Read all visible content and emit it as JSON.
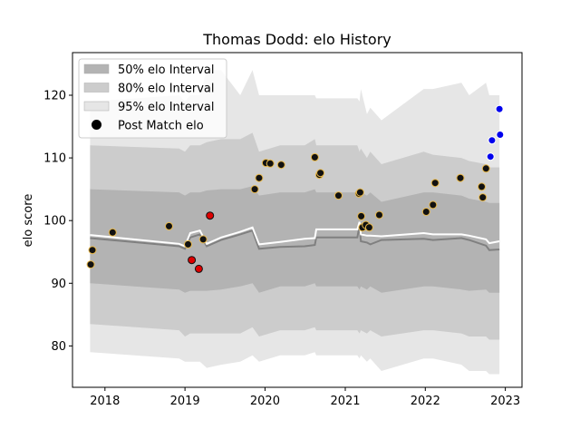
{
  "chart_data": {
    "type": "line",
    "title": "Thomas Dodd: elo History",
    "xlabel": "",
    "ylabel": "elo score",
    "xlim": [
      "2017-08-06",
      "2023-03-18"
    ],
    "ylim": [
      73.4,
      126.8
    ],
    "x_ticks": [
      "2018",
      "2019",
      "2020",
      "2021",
      "2022",
      "2023"
    ],
    "y_ticks": [
      80,
      90,
      100,
      110,
      120
    ],
    "grid": false,
    "legend_position": "upper-left",
    "legend": [
      {
        "label": "50% elo Interval",
        "swatch": "#b3b3b3"
      },
      {
        "label": "80% elo Interval",
        "swatch": "#cccccc"
      },
      {
        "label": "95% elo Interval",
        "swatch": "#e6e6e6"
      },
      {
        "label": "Post Match elo",
        "swatch": "#000000"
      }
    ],
    "colors": {
      "band50": "#b3b3b3",
      "band80": "#cccccc",
      "band95": "#e6e6e6",
      "median_line": "#808080",
      "mean_line": "#ffffff",
      "win_marker": "#111111",
      "win_edge": "#e8b84a",
      "loss_marker": "#dd0000",
      "projection_marker": "#0000ee"
    },
    "bands": {
      "x": [
        "2017-10-25",
        "2018-12-05",
        "2019-01-01",
        "2019-01-25",
        "2019-03-10",
        "2019-04-10",
        "2019-06-15",
        "2019-09-10",
        "2019-11-05",
        "2019-12-05",
        "2020-03-10",
        "2020-06-30",
        "2020-08-15",
        "2020-08-22",
        "2021-02-25",
        "2021-03-07",
        "2021-03-13",
        "2021-04-10",
        "2021-04-25",
        "2021-06-15",
        "2021-12-25",
        "2022-02-05",
        "2022-06-15",
        "2022-07-20",
        "2022-10-05",
        "2022-10-20",
        "2022-12-05"
      ],
      "p95_low": [
        79,
        78,
        77.5,
        77.5,
        77.5,
        76.5,
        77,
        77.5,
        78.5,
        77.5,
        78.5,
        78.5,
        79,
        78.5,
        78.5,
        78,
        78.5,
        77.5,
        78,
        76,
        78,
        78,
        77,
        76,
        76,
        75.5,
        75.5
      ],
      "p80_low": [
        83.5,
        82.5,
        81.5,
        82,
        82,
        82,
        82,
        82,
        83,
        81.5,
        82.5,
        82.5,
        83,
        82.5,
        82.5,
        82,
        82.5,
        82,
        82.5,
        81.5,
        82.5,
        82.5,
        82,
        81.5,
        81.5,
        81,
        81
      ],
      "p50_low": [
        90,
        89,
        88.5,
        88.8,
        88.8,
        88.8,
        89,
        89.5,
        90,
        88.5,
        89.5,
        89.5,
        90,
        89.5,
        89.5,
        89,
        89.5,
        89,
        89.5,
        88.5,
        89.5,
        89.5,
        89,
        88.8,
        89,
        88.5,
        88.5
      ],
      "p50_high": [
        105,
        104.5,
        104,
        104.5,
        104.5,
        104.8,
        105,
        105,
        105.5,
        104,
        104.5,
        104.5,
        105,
        104.5,
        104.5,
        104,
        104.5,
        104,
        104.5,
        103,
        104.5,
        104.5,
        104,
        103.5,
        103,
        102.8,
        102.8
      ],
      "p80_high": [
        112,
        111.5,
        111,
        112,
        112,
        112.5,
        113,
        113,
        114,
        111,
        112,
        112,
        113,
        112,
        112,
        111,
        111.5,
        110,
        111,
        109,
        111,
        110.5,
        110,
        109.5,
        109,
        108.5,
        108.5
      ],
      "p95_high": [
        119,
        120,
        119,
        120,
        120,
        124,
        124,
        120,
        124,
        120,
        120,
        120,
        120,
        119.5,
        119.5,
        119,
        121,
        117,
        118,
        116,
        121,
        121,
        122,
        120,
        122,
        120,
        120
      ],
      "median": [
        97.2,
        95.9,
        95.5,
        97.3,
        97.8,
        95.9,
        96.9,
        97.8,
        98.4,
        95.5,
        95.8,
        95.9,
        96.1,
        97.3,
        97.3,
        99.2,
        96.7,
        96.5,
        96.2,
        96.9,
        97.1,
        96.9,
        97.2,
        96.9,
        96.0,
        95.3,
        95.4
      ],
      "mean": [
        97.7,
        96.3,
        95.9,
        98.0,
        98.4,
        96.3,
        97.3,
        98.2,
        98.9,
        96.2,
        96.6,
        97.1,
        97.2,
        98.6,
        98.6,
        99.8,
        97.8,
        97.6,
        97.6,
        97.5,
        98.0,
        97.8,
        97.8,
        97.6,
        97.0,
        96.4,
        96.7
      ]
    },
    "series": [
      {
        "name": "Post Match elo",
        "kind": "win",
        "x": [
          "2017-10-28",
          "2017-11-05",
          "2018-02-05",
          "2018-10-20",
          "2019-01-15",
          "2019-03-25",
          "2019-11-15",
          "2019-12-05",
          "2020-01-05",
          "2020-01-25",
          "2020-03-15",
          "2020-08-15",
          "2020-09-05",
          "2020-09-10",
          "2020-12-01",
          "2021-03-05",
          "2021-03-10",
          "2021-03-15",
          "2021-03-20",
          "2021-04-05",
          "2021-04-20",
          "2021-06-05",
          "2022-01-05",
          "2022-02-05",
          "2022-02-15",
          "2022-06-10",
          "2022-09-15",
          "2022-09-20",
          "2022-10-05"
        ],
        "y": [
          93,
          95.3,
          98.1,
          99.1,
          96.2,
          97,
          105,
          106.8,
          109.2,
          109.1,
          108.9,
          110.1,
          107.3,
          107.6,
          104,
          104.3,
          104.5,
          100.7,
          98.9,
          99.3,
          98.9,
          100.9,
          101.4,
          102.5,
          106,
          106.8,
          105.4,
          103.7,
          108.3
        ]
      },
      {
        "name": "Post Match elo",
        "kind": "loss",
        "x": [
          "2019-02-01",
          "2019-03-05",
          "2019-04-25"
        ],
        "y": [
          93.7,
          92.3,
          100.8
        ]
      },
      {
        "name": "Post Match elo",
        "kind": "projection",
        "x": [
          "2022-10-25",
          "2022-11-01",
          "2022-12-05",
          "2022-12-08"
        ],
        "y": [
          110.2,
          112.8,
          117.8,
          113.7
        ]
      }
    ]
  }
}
